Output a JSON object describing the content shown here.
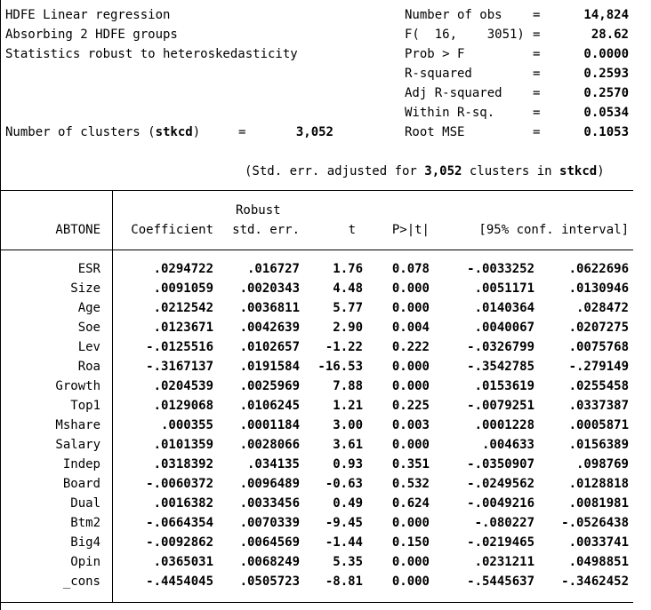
{
  "header": {
    "left_lines": [
      "HDFE Linear regression",
      "Absorbing 2 HDFE groups",
      "Statistics robust to heteroskedasticity"
    ],
    "stats": [
      {
        "label": "Number of obs",
        "eq": "=",
        "value": "14,824"
      },
      {
        "label": "F(  16,    3051)",
        "eq": "=",
        "value": "28.62"
      },
      {
        "label": "Prob > F",
        "eq": "=",
        "value": "0.0000"
      },
      {
        "label": "R-squared",
        "eq": "=",
        "value": "0.2593"
      },
      {
        "label": "Adj R-squared",
        "eq": "=",
        "value": "0.2570"
      },
      {
        "label": "Within R-sq.",
        "eq": "=",
        "value": "0.0534"
      },
      {
        "label": "Root MSE",
        "eq": "=",
        "value": "0.1053"
      }
    ],
    "clusters_label": "Number of clusters (",
    "clusters_var": "stkcd",
    "clusters_close": ")",
    "clusters_eq": "=",
    "clusters_value": "3,052",
    "adjusted_prefix": "(Std. err. adjusted for ",
    "adjusted_count": "3,052",
    "adjusted_middle": " clusters in ",
    "adjusted_var": "stkcd",
    "adjusted_suffix": ")"
  },
  "table": {
    "depvar": "ABTONE",
    "col_robust": "Robust",
    "columns": [
      "Coefficient",
      "std. err.",
      "t",
      "P>|t|",
      "[95% conf. interval]"
    ],
    "rows": [
      {
        "name": "ESR",
        "coef": ".0294722",
        "se": ".016727",
        "t": "1.76",
        "p": "0.078",
        "lo": "-.0033252",
        "hi": ".0622696"
      },
      {
        "name": "Size",
        "coef": ".0091059",
        "se": ".0020343",
        "t": "4.48",
        "p": "0.000",
        "lo": ".0051171",
        "hi": ".0130946"
      },
      {
        "name": "Age",
        "coef": ".0212542",
        "se": ".0036811",
        "t": "5.77",
        "p": "0.000",
        "lo": ".0140364",
        "hi": ".028472"
      },
      {
        "name": "Soe",
        "coef": ".0123671",
        "se": ".0042639",
        "t": "2.90",
        "p": "0.004",
        "lo": ".0040067",
        "hi": ".0207275"
      },
      {
        "name": "Lev",
        "coef": "-.0125516",
        "se": ".0102657",
        "t": "-1.22",
        "p": "0.222",
        "lo": "-.0326799",
        "hi": ".0075768"
      },
      {
        "name": "Roa",
        "coef": "-.3167137",
        "se": ".0191584",
        "t": "-16.53",
        "p": "0.000",
        "lo": "-.3542785",
        "hi": "-.279149"
      },
      {
        "name": "Growth",
        "coef": ".0204539",
        "se": ".0025969",
        "t": "7.88",
        "p": "0.000",
        "lo": ".0153619",
        "hi": ".0255458"
      },
      {
        "name": "Top1",
        "coef": ".0129068",
        "se": ".0106245",
        "t": "1.21",
        "p": "0.225",
        "lo": "-.0079251",
        "hi": ".0337387"
      },
      {
        "name": "Mshare",
        "coef": ".000355",
        "se": ".0001184",
        "t": "3.00",
        "p": "0.003",
        "lo": ".0001228",
        "hi": ".0005871"
      },
      {
        "name": "Salary",
        "coef": ".0101359",
        "se": ".0028066",
        "t": "3.61",
        "p": "0.000",
        "lo": ".004633",
        "hi": ".0156389"
      },
      {
        "name": "Indep",
        "coef": ".0318392",
        "se": ".034135",
        "t": "0.93",
        "p": "0.351",
        "lo": "-.0350907",
        "hi": ".098769"
      },
      {
        "name": "Board",
        "coef": "-.0060372",
        "se": ".0096489",
        "t": "-0.63",
        "p": "0.532",
        "lo": "-.0249562",
        "hi": ".0128818"
      },
      {
        "name": "Dual",
        "coef": ".0016382",
        "se": ".0033456",
        "t": "0.49",
        "p": "0.624",
        "lo": "-.0049216",
        "hi": ".0081981"
      },
      {
        "name": "Btm2",
        "coef": "-.0664354",
        "se": ".0070339",
        "t": "-9.45",
        "p": "0.000",
        "lo": "-.080227",
        "hi": "-.0526438"
      },
      {
        "name": "Big4",
        "coef": "-.0092862",
        "se": ".0064569",
        "t": "-1.44",
        "p": "0.150",
        "lo": "-.0219465",
        "hi": ".0033741"
      },
      {
        "name": "Opin",
        "coef": ".0365031",
        "se": ".0068249",
        "t": "5.35",
        "p": "0.000",
        "lo": ".0231211",
        "hi": ".0498851"
      },
      {
        "name": "_cons",
        "coef": "-.4454045",
        "se": ".0505723",
        "t": "-8.81",
        "p": "0.000",
        "lo": "-.5445637",
        "hi": "-.3462452"
      }
    ]
  }
}
